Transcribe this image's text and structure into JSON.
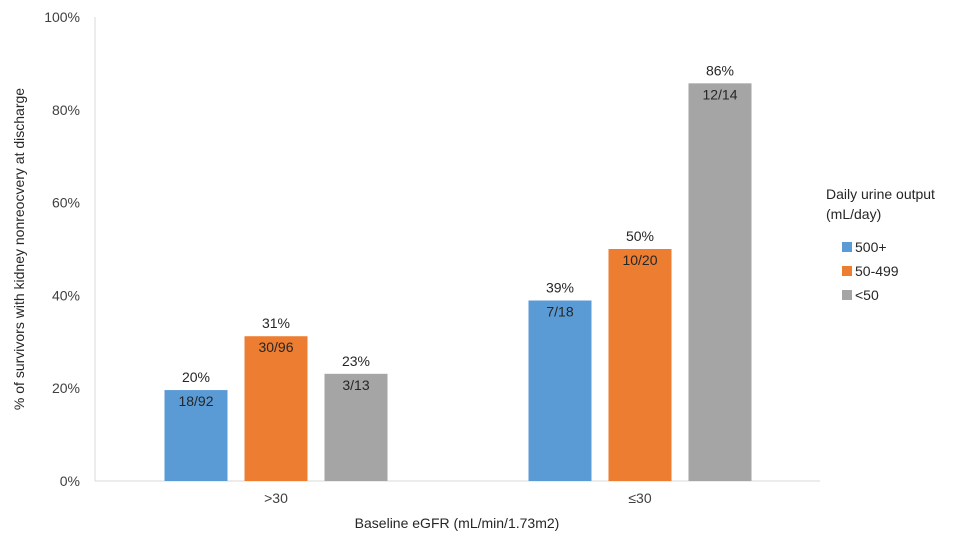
{
  "chart_data": {
    "type": "bar",
    "title": "",
    "categories": [
      ">30",
      "≤30"
    ],
    "xlabel": "Baseline eGFR (mL/min/1.73m2)",
    "ylabel": "% of survivors with kidney nonreocvery at discharge",
    "ylim": [
      0,
      100
    ],
    "yticks": [
      "0%",
      "20%",
      "40%",
      "60%",
      "80%",
      "100%"
    ],
    "ytick_values": [
      0,
      20,
      40,
      60,
      80,
      100
    ],
    "grid": false,
    "legend": {
      "title_lines": [
        "Daily urine output",
        "(mL/day)"
      ],
      "position": "right"
    },
    "series": [
      {
        "name": "500+",
        "color": "#5b9bd5",
        "values": [
          19.6,
          38.9
        ],
        "pct_labels": [
          "20%",
          "39%"
        ],
        "frac_labels": [
          "18/92",
          "7/18"
        ]
      },
      {
        "name": "50-499",
        "color": "#ed7d31",
        "values": [
          31.2,
          50.0
        ],
        "pct_labels": [
          "31%",
          "50%"
        ],
        "frac_labels": [
          "30/96",
          "10/20"
        ]
      },
      {
        "name": "<50",
        "color": "#a5a5a5",
        "values": [
          23.1,
          85.7
        ],
        "pct_labels": [
          "23%",
          "86%"
        ],
        "frac_labels": [
          "3/13",
          "12/14"
        ]
      }
    ]
  }
}
